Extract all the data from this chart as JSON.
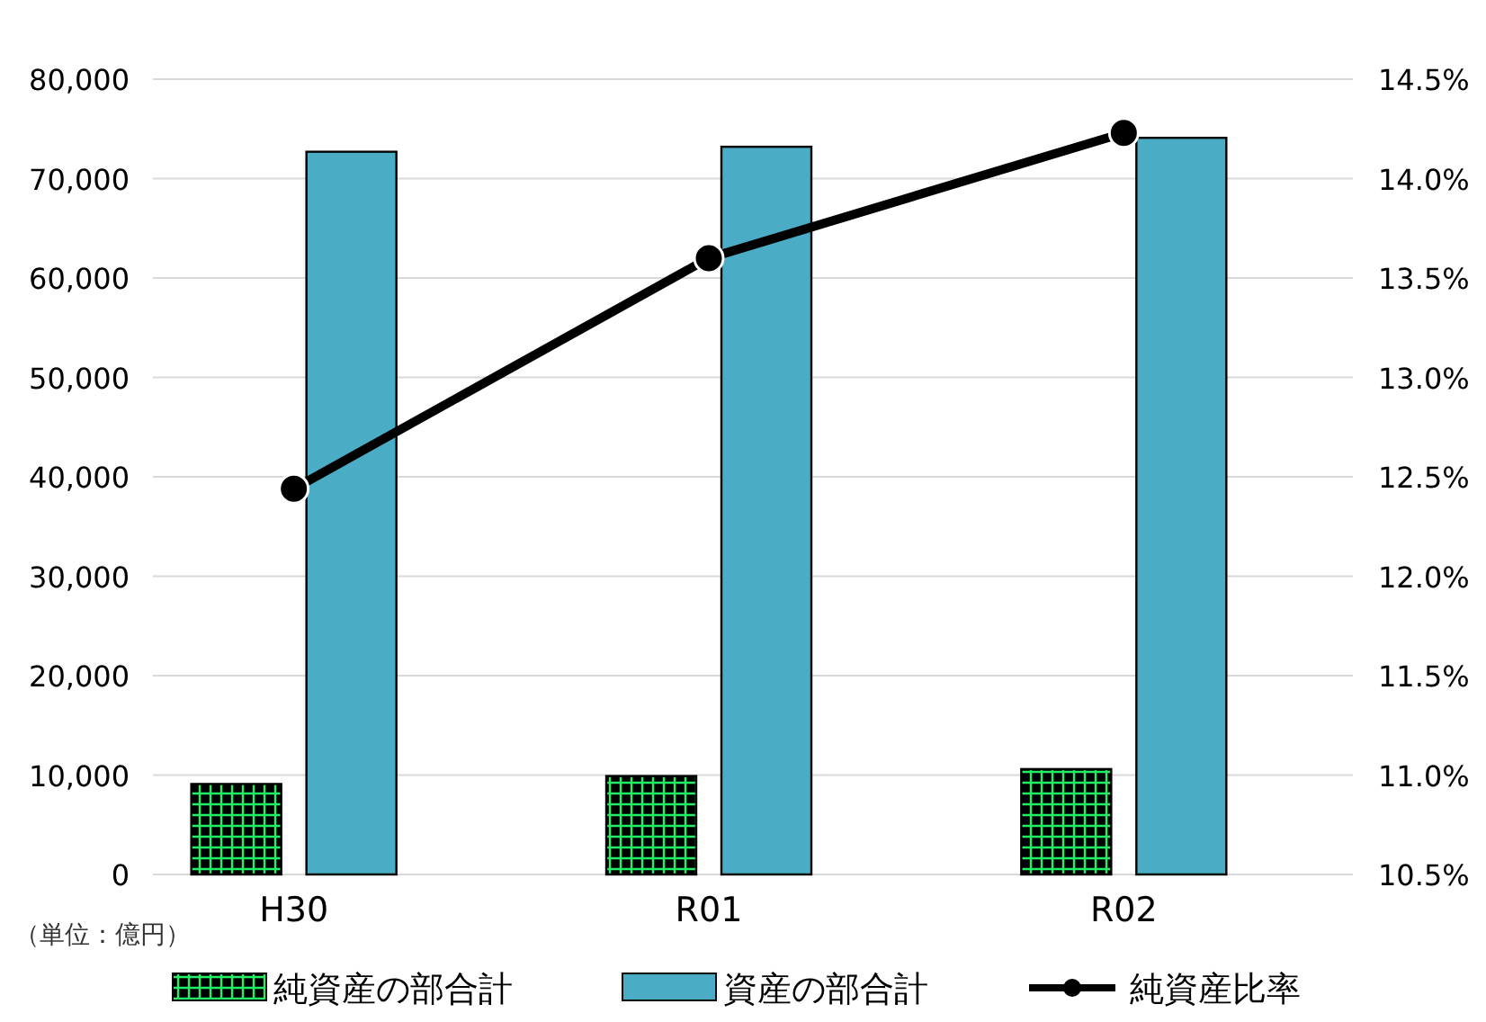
{
  "chart_data": {
    "type": "bar",
    "categories": [
      "H30",
      "R01",
      "R02"
    ],
    "series": [
      {
        "name": "純資産の部合計",
        "color": "#000000",
        "values": [
          9100,
          9900,
          10600
        ]
      },
      {
        "name": "資産の部合計",
        "color": "#4bacc6",
        "values": [
          72700,
          73200,
          74100
        ]
      },
      {
        "name": "純資産比率",
        "type": "line",
        "axis": "y2",
        "color": "#000000",
        "values": [
          12.44,
          13.6,
          14.23
        ]
      }
    ],
    "ylim": [
      0,
      80000
    ],
    "yticks": [
      {
        "value": 0,
        "label": "0"
      },
      {
        "value": 10000,
        "label": "10,000"
      },
      {
        "value": 20000,
        "label": "20,000"
      },
      {
        "value": 30000,
        "label": "30,000"
      },
      {
        "value": 40000,
        "label": "40,000"
      },
      {
        "value": 50000,
        "label": "50,000"
      },
      {
        "value": 60000,
        "label": "60,000"
      },
      {
        "value": 70000,
        "label": "70,000"
      },
      {
        "value": 80000,
        "label": "80,000"
      }
    ],
    "y2lim": [
      10.5,
      14.5
    ],
    "y2ticks": [
      {
        "value": 10.5,
        "label": "10.5%"
      },
      {
        "value": 11,
        "label": "11.0%"
      },
      {
        "value": 11.5,
        "label": "11.5%"
      },
      {
        "value": 12,
        "label": "12.0%"
      },
      {
        "value": 12.5,
        "label": "12.5%"
      },
      {
        "value": 13,
        "label": "13.0%"
      },
      {
        "value": 13.5,
        "label": "13.5%"
      },
      {
        "value": 14,
        "label": "14.0%"
      },
      {
        "value": 14.5,
        "label": "14.5%"
      }
    ],
    "grid": "y",
    "legend": "bottom",
    "marker": "circle",
    "line_style": "solid",
    "annotations": [
      "（単位：億円）"
    ]
  }
}
